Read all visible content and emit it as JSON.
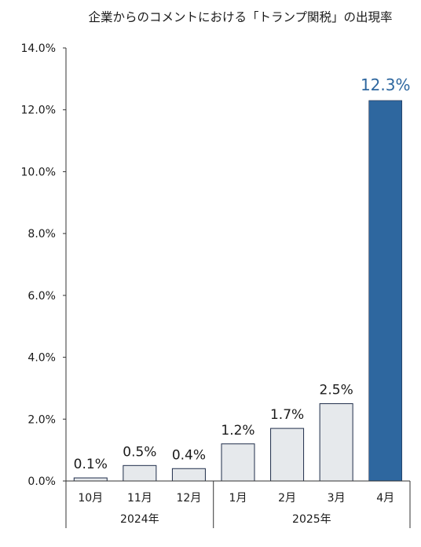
{
  "chart_data": {
    "type": "bar",
    "title": "企業からのコメントにおける「トランプ関税」の出現率",
    "xlabel": "",
    "ylabel": "",
    "ylim": [
      0,
      14
    ],
    "y_ticks": [
      "0.0%",
      "2.0%",
      "4.0%",
      "6.0%",
      "8.0%",
      "10.0%",
      "12.0%",
      "14.0%"
    ],
    "categories": [
      "10月",
      "11月",
      "12月",
      "1月",
      "2月",
      "3月",
      "4月"
    ],
    "values": [
      0.1,
      0.5,
      0.4,
      1.2,
      1.7,
      2.5,
      12.3
    ],
    "data_labels": [
      "0.1%",
      "0.5%",
      "0.4%",
      "1.2%",
      "1.7%",
      "2.5%",
      "12.3%"
    ],
    "year_groups": [
      {
        "label": "2024年",
        "categories": [
          "10月",
          "11月",
          "12月"
        ]
      },
      {
        "label": "2025年",
        "categories": [
          "1月",
          "2月",
          "3月",
          "4月"
        ]
      }
    ],
    "highlight_index": 6,
    "colors": {
      "bar_fill": "#e6e9ec",
      "bar_stroke": "#1f2d4a",
      "highlight_fill": "#2e679f",
      "highlight_label": "#2e679f",
      "text": "#1a1a1a",
      "axis": "#333333"
    },
    "grid": false,
    "legend": "none"
  }
}
